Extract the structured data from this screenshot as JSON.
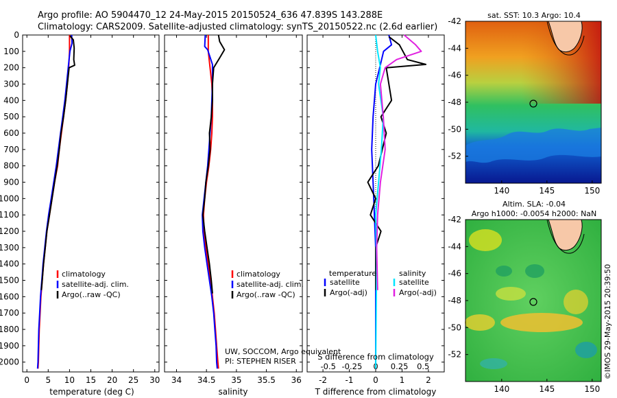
{
  "header": {
    "line1": "Argo profile: AO 5904470_12 24-May-2015 20150524_636 47.839S 143.288E",
    "line2": "Climatology: CARS2009. Satellite-adjusted climatology: synTS_20150522.nc (2.6d earlier)"
  },
  "credit": "©IMOS 29-May-2015 20:39:50",
  "colors": {
    "climatology": "#ff0000",
    "satellite": "#0000ff",
    "argo": "#000000",
    "sat_salinity": "#00e5ff",
    "argo_salinity": "#e020e0"
  },
  "chart_data": [
    {
      "type": "line",
      "id": "temperature",
      "xlabel": "temperature (deg C)",
      "xlim": [
        -1,
        31
      ],
      "ylim": [
        2060,
        0
      ],
      "x_ticks": [
        0,
        5,
        10,
        15,
        20,
        25,
        30
      ],
      "y_ticks": [
        0,
        100,
        200,
        300,
        400,
        500,
        600,
        700,
        800,
        900,
        1000,
        1100,
        1200,
        1300,
        1400,
        1500,
        1600,
        1700,
        1800,
        1900,
        2000
      ],
      "legend": [
        "climatology",
        "satellite-adj. clim.",
        "Argo(..raw -QC)"
      ],
      "series": [
        {
          "name": "climatology",
          "color": "#ff0000",
          "points": [
            [
              10.0,
              0
            ],
            [
              10.0,
              100
            ],
            [
              9.8,
              200
            ],
            [
              9.5,
              300
            ],
            [
              9.1,
              400
            ],
            [
              8.6,
              500
            ],
            [
              8.1,
              600
            ],
            [
              7.6,
              700
            ],
            [
              7.2,
              800
            ],
            [
              6.5,
              900
            ],
            [
              5.9,
              1000
            ],
            [
              5.3,
              1100
            ],
            [
              4.7,
              1200
            ],
            [
              4.3,
              1300
            ],
            [
              3.9,
              1400
            ],
            [
              3.6,
              1500
            ],
            [
              3.3,
              1600
            ],
            [
              3.1,
              1700
            ],
            [
              2.9,
              1800
            ],
            [
              2.8,
              1900
            ],
            [
              2.7,
              2000
            ],
            [
              2.6,
              2040
            ]
          ]
        },
        {
          "name": "satellite-adj. clim.",
          "color": "#0000ff",
          "points": [
            [
              10.5,
              0
            ],
            [
              10.6,
              50
            ],
            [
              10.1,
              100
            ],
            [
              9.7,
              200
            ],
            [
              9.3,
              300
            ],
            [
              8.9,
              400
            ],
            [
              8.4,
              500
            ],
            [
              7.9,
              600
            ],
            [
              7.4,
              700
            ],
            [
              6.9,
              800
            ],
            [
              6.3,
              900
            ],
            [
              5.7,
              1000
            ],
            [
              5.1,
              1100
            ],
            [
              4.6,
              1200
            ],
            [
              4.2,
              1300
            ],
            [
              3.8,
              1400
            ],
            [
              3.5,
              1500
            ],
            [
              3.2,
              1600
            ],
            [
              3.0,
              1700
            ],
            [
              2.8,
              1800
            ],
            [
              2.7,
              1900
            ],
            [
              2.6,
              2000
            ],
            [
              2.5,
              2040
            ]
          ]
        },
        {
          "name": "Argo(..raw -QC)",
          "color": "#000000",
          "points": [
            [
              10.1,
              5
            ],
            [
              10.9,
              30
            ],
            [
              11.1,
              80
            ],
            [
              11.0,
              150
            ],
            [
              11.2,
              185
            ],
            [
              9.9,
              200
            ],
            [
              9.5,
              300
            ],
            [
              9.1,
              400
            ],
            [
              8.6,
              500
            ],
            [
              8.0,
              600
            ],
            [
              7.6,
              700
            ],
            [
              7.1,
              800
            ],
            [
              6.5,
              900
            ],
            [
              5.9,
              1000
            ],
            [
              5.3,
              1100
            ],
            [
              4.7,
              1200
            ],
            [
              4.3,
              1300
            ],
            [
              3.9,
              1400
            ],
            [
              3.6,
              1500
            ],
            [
              3.4,
              1560
            ]
          ]
        }
      ]
    },
    {
      "type": "line",
      "id": "salinity",
      "xlabel": "salinity",
      "xlim": [
        33.8,
        36.1
      ],
      "ylim": [
        2060,
        0
      ],
      "x_ticks": [
        34,
        34.5,
        35,
        35.5,
        36
      ],
      "legend": [
        "climatology",
        "satellite-adj. clim.",
        "Argo(..raw -QC)"
      ],
      "annotation": [
        "UW, SOCCOM, Argo equivalent",
        "PI: STEPHEN RISER"
      ],
      "series": [
        {
          "name": "climatology",
          "color": "#ff0000",
          "points": [
            [
              34.53,
              0
            ],
            [
              34.53,
              100
            ],
            [
              34.56,
              200
            ],
            [
              34.59,
              300
            ],
            [
              34.6,
              400
            ],
            [
              34.6,
              500
            ],
            [
              34.59,
              600
            ],
            [
              34.57,
              700
            ],
            [
              34.54,
              800
            ],
            [
              34.5,
              900
            ],
            [
              34.47,
              1000
            ],
            [
              34.45,
              1100
            ],
            [
              34.46,
              1200
            ],
            [
              34.49,
              1300
            ],
            [
              34.53,
              1400
            ],
            [
              34.57,
              1500
            ],
            [
              34.6,
              1600
            ],
            [
              34.63,
              1700
            ],
            [
              34.65,
              1800
            ],
            [
              34.67,
              1900
            ],
            [
              34.69,
              2000
            ],
            [
              34.7,
              2040
            ]
          ]
        },
        {
          "name": "satellite-adj. clim.",
          "color": "#0000ff",
          "points": [
            [
              34.48,
              0
            ],
            [
              34.47,
              70
            ],
            [
              34.52,
              90
            ],
            [
              34.6,
              180
            ],
            [
              34.6,
              300
            ],
            [
              34.59,
              400
            ],
            [
              34.58,
              500
            ],
            [
              34.56,
              600
            ],
            [
              34.54,
              700
            ],
            [
              34.52,
              800
            ],
            [
              34.49,
              900
            ],
            [
              34.46,
              1000
            ],
            [
              34.43,
              1100
            ],
            [
              34.44,
              1200
            ],
            [
              34.47,
              1300
            ],
            [
              34.51,
              1400
            ],
            [
              34.55,
              1500
            ],
            [
              34.59,
              1600
            ],
            [
              34.62,
              1700
            ],
            [
              34.64,
              1800
            ],
            [
              34.66,
              1900
            ],
            [
              34.67,
              2000
            ],
            [
              34.68,
              2040
            ]
          ]
        },
        {
          "name": "Argo(..raw -QC)",
          "color": "#000000",
          "points": [
            [
              34.7,
              0
            ],
            [
              34.72,
              40
            ],
            [
              34.8,
              90
            ],
            [
              34.72,
              140
            ],
            [
              34.62,
              200
            ],
            [
              34.6,
              300
            ],
            [
              34.6,
              400
            ],
            [
              34.58,
              500
            ],
            [
              34.55,
              600
            ],
            [
              34.56,
              700
            ],
            [
              34.53,
              800
            ],
            [
              34.49,
              900
            ],
            [
              34.47,
              1000
            ],
            [
              34.44,
              1100
            ],
            [
              34.47,
              1200
            ],
            [
              34.51,
              1300
            ],
            [
              34.55,
              1400
            ],
            [
              34.58,
              1500
            ],
            [
              34.6,
              1580
            ]
          ]
        }
      ]
    },
    {
      "type": "line",
      "id": "difference",
      "xlabel": "T difference from climatology",
      "xlabel_top": "S difference from climatology",
      "xlim": [
        -2.6,
        2.6
      ],
      "ylim": [
        2060,
        0
      ],
      "x_ticks": [
        -2,
        -1,
        0,
        1,
        2
      ],
      "x_ticks_s": [
        "-0.5",
        "-0.25",
        "0",
        "0.25",
        "0.5"
      ],
      "legend_titles": [
        "temperature",
        "salinity"
      ],
      "legend_left": [
        "satellite",
        "Argo(-adj)"
      ],
      "legend_right": [
        "satellite",
        "Argo(-adj)"
      ],
      "series": [
        {
          "name": "T satellite",
          "color": "#0000ff",
          "points": [
            [
              0.5,
              0
            ],
            [
              0.6,
              60
            ],
            [
              0.3,
              100
            ],
            [
              0.15,
              200
            ],
            [
              0.0,
              300
            ],
            [
              -0.1,
              500
            ],
            [
              -0.15,
              700
            ],
            [
              -0.1,
              900
            ],
            [
              -0.05,
              1100
            ],
            [
              0,
              1300
            ],
            [
              0,
              1500
            ],
            [
              0,
              2040
            ]
          ]
        },
        {
          "name": "T Argo(-adj)",
          "color": "#000000",
          "points": [
            [
              0.5,
              10
            ],
            [
              0.9,
              60
            ],
            [
              1.2,
              150
            ],
            [
              1.9,
              180
            ],
            [
              0.4,
              200
            ],
            [
              0.6,
              400
            ],
            [
              0.2,
              500
            ],
            [
              0.4,
              600
            ],
            [
              0.1,
              800
            ],
            [
              -0.3,
              900
            ],
            [
              0,
              1000
            ],
            [
              -0.2,
              1100
            ],
            [
              0.2,
              1200
            ],
            [
              0,
              1300
            ],
            [
              0,
              1560
            ]
          ]
        },
        {
          "name": "S satellite",
          "color": "#00e5ff",
          "points": [
            [
              0.0,
              0
            ],
            [
              0.02,
              100
            ],
            [
              0.05,
              200
            ],
            [
              0.03,
              300
            ],
            [
              0.08,
              500
            ],
            [
              0.06,
              700
            ],
            [
              0.03,
              900
            ],
            [
              0.0,
              1100
            ],
            [
              0.01,
              1400
            ],
            [
              0,
              2040
            ]
          ]
        },
        {
          "name": "S Argo(-adj)",
          "color": "#e020e0",
          "points": [
            [
              0.3,
              0
            ],
            [
              0.42,
              60
            ],
            [
              0.48,
              100
            ],
            [
              0.22,
              150
            ],
            [
              0.1,
              200
            ],
            [
              0.05,
              300
            ],
            [
              0.08,
              500
            ],
            [
              0.1,
              700
            ],
            [
              0.05,
              900
            ],
            [
              0.02,
              1100
            ],
            [
              0.01,
              1300
            ],
            [
              0.02,
              1560
            ]
          ]
        }
      ]
    }
  ],
  "maps": [
    {
      "id": "sst-map",
      "title": "sat. SST: 10.3 Argo: 10.4",
      "lon_ticks": [
        140,
        145,
        150
      ],
      "lat_ticks": [
        -42,
        -44,
        -46,
        -48,
        -50,
        -52
      ],
      "lon_range": [
        136,
        151
      ],
      "lat_range": [
        -54,
        -42
      ],
      "marker": {
        "lon": 143.288,
        "lat": -47.839
      }
    },
    {
      "id": "sla-map",
      "title_line1": "Altim. SLA: -0.04",
      "title_line2": "Argo h1000: -0.0054 h2000: NaN",
      "lon_ticks": [
        140,
        145,
        150
      ],
      "lat_ticks": [
        -42,
        -44,
        -46,
        -48,
        -50,
        -52
      ],
      "lon_range": [
        136,
        151
      ],
      "lat_range": [
        -54,
        -42
      ],
      "marker": {
        "lon": 143.288,
        "lat": -47.839
      }
    }
  ]
}
